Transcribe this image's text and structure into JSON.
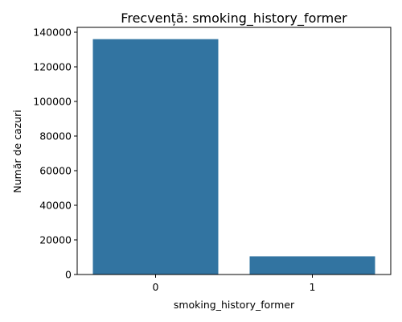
{
  "chart_data": {
    "type": "bar",
    "title": "Frecvență: smoking_history_former",
    "xlabel": "smoking_history_former",
    "ylabel": "Număr de cazuri",
    "categories": [
      "0",
      "1"
    ],
    "values": [
      136000,
      10500
    ],
    "ylim": [
      0,
      142800
    ],
    "yticks": [
      0,
      20000,
      40000,
      60000,
      80000,
      100000,
      120000,
      140000
    ],
    "color": "#3274a1",
    "grid": false
  }
}
